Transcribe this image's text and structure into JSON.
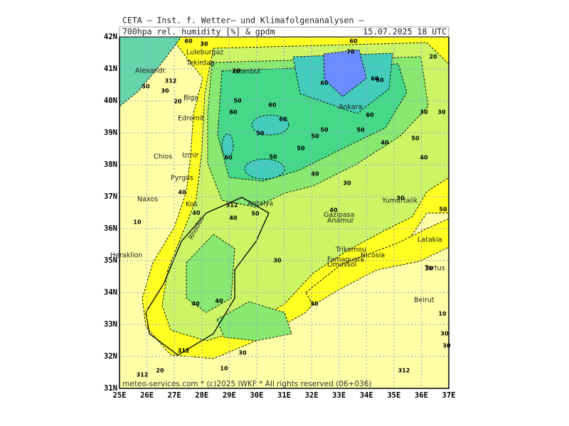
{
  "header": {
    "title": "CETA – Inst. f. Wetter– und Klimafolgenanalysen –",
    "field": "700hpa rel. humidity [%] & gpdm",
    "date": "15.07.2025 18 UTC"
  },
  "axes": {
    "lat_labels": [
      "42N",
      "41N",
      "40N",
      "39N",
      "38N",
      "37N",
      "36N",
      "35N",
      "34N",
      "33N",
      "32N",
      "31N"
    ],
    "lon_labels": [
      "25E",
      "26E",
      "27E",
      "28E",
      "29E",
      "30E",
      "31E",
      "32E",
      "33E",
      "34E",
      "35E",
      "36E",
      "37E"
    ]
  },
  "places": [
    "Alexandr.",
    "Luleburgaz",
    "Tekirdag",
    "Istanbul",
    "Biga",
    "Edremit",
    "Chios",
    "Izmir",
    "Pyrgos",
    "Naxos",
    "Kos",
    "Rhodos",
    "Antalya",
    "Ankara",
    "Gazipasa",
    "Anamur",
    "Yumurtalik",
    "Latakia",
    "Heraklion",
    "Trikomou",
    "Nicosia",
    "Famagusta",
    "Limassol",
    "Tartus",
    "Beirut"
  ],
  "contour_labels": [
    60,
    30,
    50,
    30,
    312,
    20,
    20,
    60,
    70,
    20,
    60,
    60,
    50,
    60,
    60,
    50,
    60,
    60,
    50,
    50,
    50,
    50,
    40,
    50,
    50,
    60,
    40,
    30,
    50,
    40,
    30,
    30,
    30,
    50,
    40,
    40,
    312,
    40,
    50,
    10,
    30,
    30,
    20,
    10,
    40,
    40,
    312,
    30,
    10,
    20,
    312,
    312,
    30,
    30,
    40
  ],
  "footer": "meteo-services.com * (c)2025 IWKF * All rights reserved (06+036)"
}
